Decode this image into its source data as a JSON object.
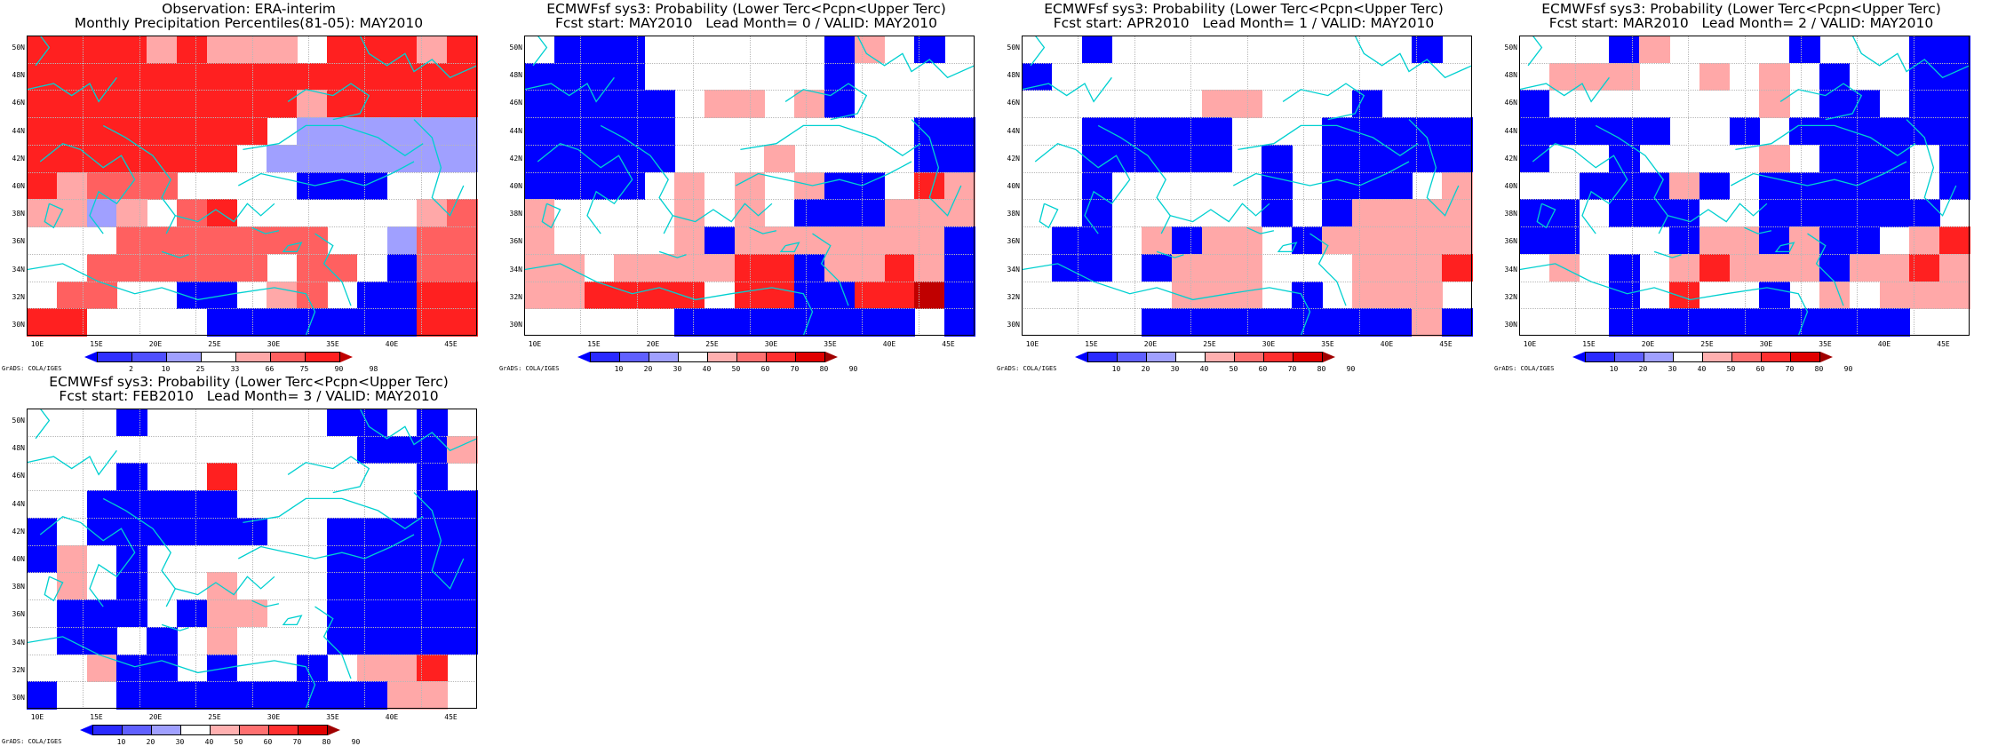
{
  "colors": {
    "deep_blue": "#0000ff",
    "mid_blue": "#5050ff",
    "light_blue": "#a0a0ff",
    "white": "#ffffff",
    "light_red": "#ffa8a8",
    "mid_red": "#ff6060",
    "red": "#ff2020",
    "dark_red": "#c00000",
    "coast": "#00d0d0"
  },
  "lat_labels": [
    "50N",
    "48N",
    "46N",
    "44N",
    "42N",
    "40N",
    "38N",
    "36N",
    "34N",
    "32N",
    "30N"
  ],
  "lon_labels": [
    "10E",
    "15E",
    "20E",
    "25E",
    "30E",
    "35E",
    "40E",
    "45E"
  ],
  "legend_obs": [
    "2",
    "10",
    "25",
    "33",
    "66",
    "75",
    "90",
    "98"
  ],
  "legend_prob": [
    "10",
    "20",
    "30",
    "40",
    "50",
    "60",
    "70",
    "80",
    "90"
  ],
  "footer": "GrADS: COLA/IGES",
  "panels": [
    {
      "title1": "Observation: ERA-interim",
      "title2": "Monthly Precipitation Percentiles(81-05): MAY2010",
      "legend": "obs",
      "grid": [
        "RRRRrRrrrwRRRrR",
        "RRRRRRRRRRRRRRR",
        "RRRRRRRRRrRRRRR",
        "RRRRRRRRwbbbbbb",
        "RRRRRRRwbbbbbbb",
        "RrmmmwwwwBBBwww",
        "rrbrwmRwwwwwwrm",
        "wwwmmmmmmmwwbmm",
        "wwmmmmmmwmmwBmm",
        "wmmwwBBwrmwBBRR",
        "RRwwwwBBBBBBBRR"
      ]
    },
    {
      "title1": "ECMWFsf sys3: Probability (Lower Terc<Pcpn<Upper Terc)",
      "title2": "Fcst start: MAY2010   Lead Month= 0 / VALID: MAY2010",
      "legend": "prob",
      "grid": [
        "wBBBwwwwwwBrwBw",
        "BBBBwwwwwwBwwww",
        "BBBBBwrrwrBwwww",
        "BBBBBwwwwwwwwBB",
        "BBBBBwwwrwwwwBB",
        "BBBBwrwrwrBBwRr",
        "rwwwwrwrwBBBrrr",
        "rwwwwrBrrrrrrrB",
        "rrwrrrrRRBrrRrB",
        "rrRRRRwRRBBRRDB",
        "wwwwwBBBBBBBBwB"
      ]
    },
    {
      "title1": "ECMWFsf sys3: Probability (Lower Terc<Pcpn<Upper Terc)",
      "title2": "Fcst start: APR2010   Lead Month= 1 / VALID: MAY2010",
      "legend": "prob",
      "grid": [
        "wwBwwwwwwwwwwBw",
        "Bwwwwwwwwwwwwww",
        "wwwwwwrrwwwBwww",
        "wwBBBBBwwwBBBBB",
        "wwBBBBBwBwBBBBB",
        "wwBwwwwwBwBBBwr",
        "wwBwwwwwBwBrrrr",
        "wBBwrBrrwBrrrrr",
        "wBBwBrrrwwwrrrR",
        "wwwwwrrrwBwrrrw",
        "wwwwBBBBBBBBBrB"
      ]
    },
    {
      "title1": "ECMWFsf sys3: Probability (Lower Terc<Pcpn<Upper Terc)",
      "title2": "Fcst start: MAR2010   Lead Month= 2 / VALID: MAY2010",
      "legend": "prob",
      "grid": [
        "wwwBrwwwwBwwwBB",
        "wrrrwwrwrwBwwBB",
        "BwwwwwwwrwBBwBB",
        "BBBBBwwBwBBBBBB",
        "BwwBwwwwrwBBBwB",
        "wwBBBrBwBBBBBwB",
        "BBwBBBwwBBBBBBw",
        "BBwwwBrrBrBBwrR",
        "wrwBwrRrrrBrrRr",
        "wwwBwRwwBwrwrrr",
        "wwwBBBBBBBBBBww"
      ]
    },
    {
      "title1": "ECMWFsf sys3: Probability (Lower Terc<Pcpn<Upper Terc)",
      "title2": "Fcst start: FEB2010   Lead Month= 3 / VALID: MAY2010",
      "legend": "prob",
      "grid": [
        "wwwBwwwwwwBBwBw",
        "wwwwwwwwwwwBBBr",
        "wwwBwwRwwwwwwBw",
        "wwBBBBBwwwwwwBB",
        "BwBBBBBBwwBBBBB",
        "BrwBwwwwwwBBBBB",
        "wrwBwwrwwwBBBBB",
        "wBBBwBrrwwBBBBB",
        "wBBwBwrwwwBBBBB",
        "wwrBBwBwwBwrrRw",
        "BwwBBBBBBBBBrrw"
      ]
    }
  ]
}
